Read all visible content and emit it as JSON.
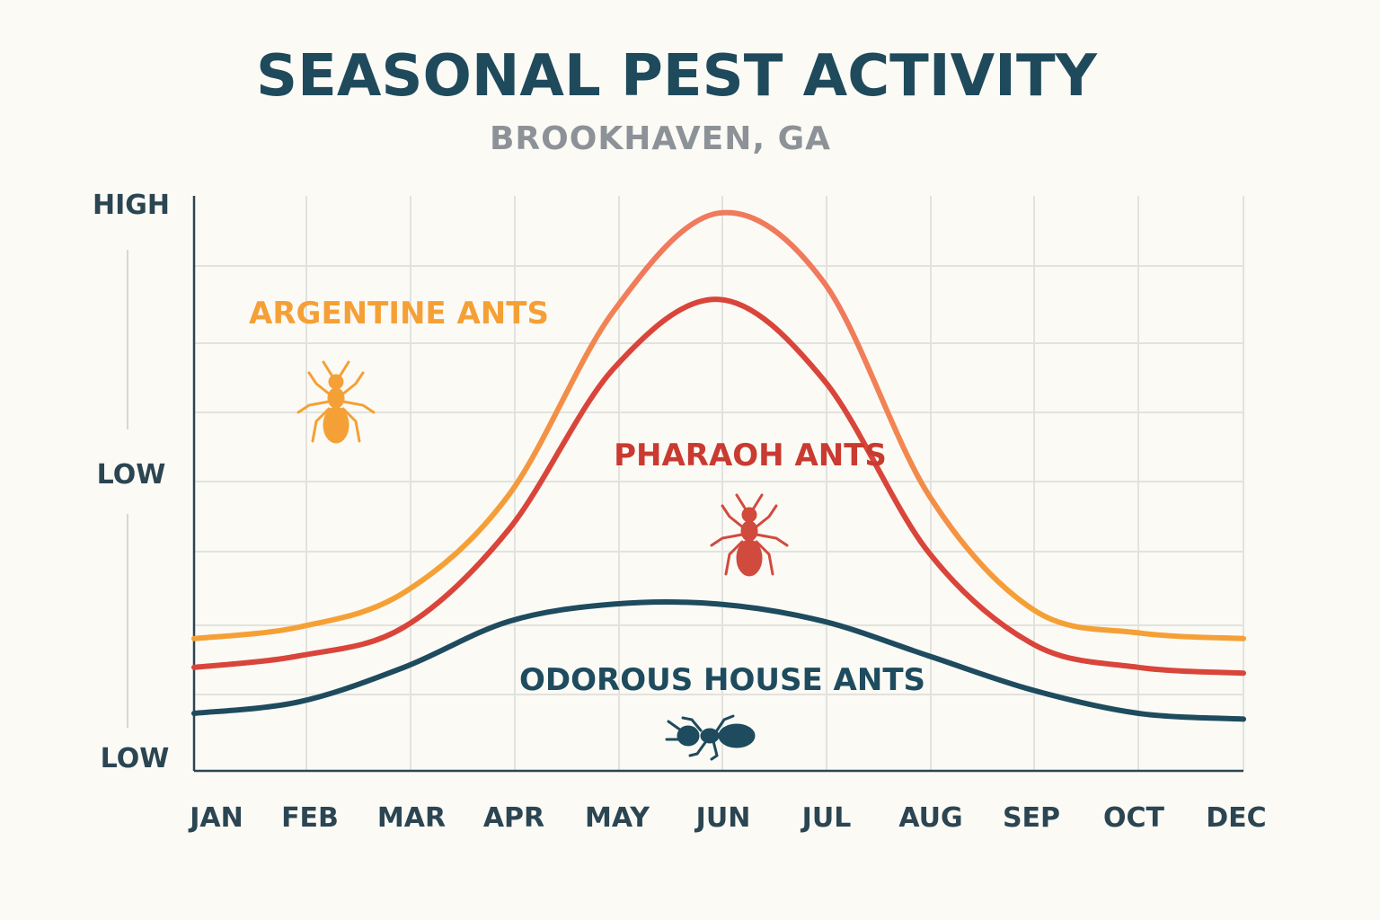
{
  "chart_data": {
    "type": "line",
    "title": "SEASONAL PEST ACTIVITY",
    "subtitle": "BROOKHAVEN, GA",
    "xlabel": "",
    "ylabel": "",
    "categories": [
      "JAN",
      "FEB",
      "MAR",
      "APR",
      "MAY",
      "JUN",
      "JUL",
      "AUG",
      "SEP",
      "OCT",
      "DEC"
    ],
    "y_tick_labels": [
      "HIGH",
      "LOW",
      "LOW"
    ],
    "ylim": [
      0,
      100
    ],
    "grid": true,
    "series": [
      {
        "name": "ARGENTINE ANTS",
        "color": "#f5a036",
        "color_peak": "#f07a5c",
        "icon": "ant-icon",
        "values": [
          23,
          25,
          31,
          48,
          80,
          97,
          85,
          48,
          28,
          24,
          23
        ]
      },
      {
        "name": "PHARAOH ANTS",
        "color": "#d9453a",
        "icon": "ant-icon",
        "values": [
          18,
          20,
          25,
          42,
          70,
          82,
          68,
          38,
          22,
          18,
          17
        ]
      },
      {
        "name": "ODOROUS HOUSE ANTS",
        "color": "#1e4b5e",
        "icon": "ant-icon",
        "values": [
          10,
          12,
          18,
          26,
          29,
          29,
          26,
          20,
          14,
          10,
          9
        ]
      }
    ]
  }
}
